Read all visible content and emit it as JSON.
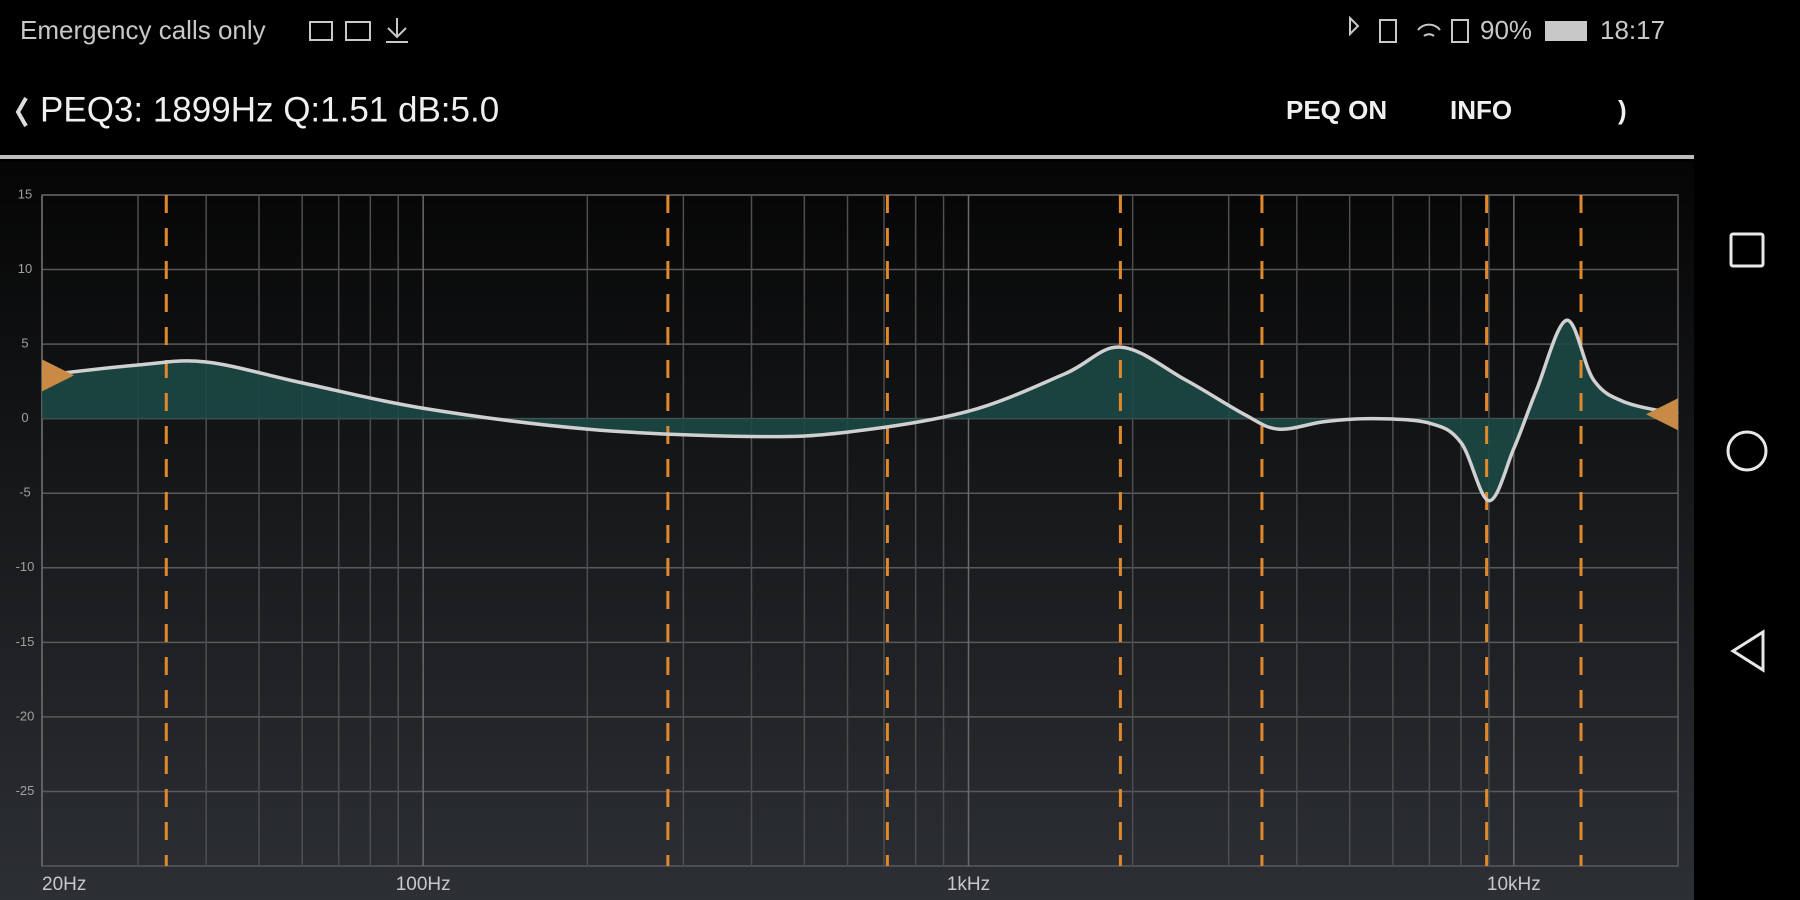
{
  "status_bar": {
    "carrier": "Emergency calls only",
    "battery": "90%",
    "time": "18:17"
  },
  "toolbar": {
    "title": "PEQ3: 1899Hz Q:1.51 dB:5.0",
    "actions": [
      "PEQ ON",
      "INFO",
      ")"
    ]
  },
  "chart_data": {
    "type": "line",
    "xscale": "log",
    "x": [
      20,
      30,
      40,
      60,
      100,
      200,
      400,
      600,
      1000,
      1500,
      1899,
      2500,
      3200,
      3700,
      4500,
      5500,
      7000,
      8000,
      9000,
      10000,
      11000,
      12500,
      14000,
      16000,
      20000
    ],
    "values": [
      2.9,
      3.6,
      3.8,
      2.4,
      0.7,
      -0.7,
      -1.2,
      -0.9,
      0.5,
      3.0,
      4.8,
      2.6,
      0.3,
      -0.7,
      -0.2,
      0,
      -0.3,
      -1.6,
      -5.5,
      -2.0,
      1.9,
      6.6,
      2.6,
      1.1,
      0.3
    ],
    "color": "#d0d0d0",
    "fill_color": "#1c4845",
    "filters": [
      33.8,
      281,
      710,
      1899,
      3452,
      8914,
      13280
    ],
    "filter_color": "#e0892c",
    "xlim": [
      20,
      20000
    ],
    "ylim": [
      -30,
      15
    ],
    "xticks": [
      {
        "value": 20,
        "label": "20Hz"
      },
      {
        "value": 100,
        "label": "100Hz"
      },
      {
        "value": 1000,
        "label": "1kHz"
      },
      {
        "value": 10000,
        "label": "10kHz"
      }
    ],
    "xminor": [
      30,
      40,
      50,
      60,
      70,
      80,
      90,
      200,
      300,
      400,
      500,
      600,
      700,
      800,
      900,
      2000,
      3000,
      4000,
      5000,
      6000,
      7000,
      8000,
      9000
    ],
    "yticks": [
      15,
      10,
      5,
      0,
      -5,
      -10,
      -15,
      -20,
      -25
    ],
    "grid": true
  }
}
